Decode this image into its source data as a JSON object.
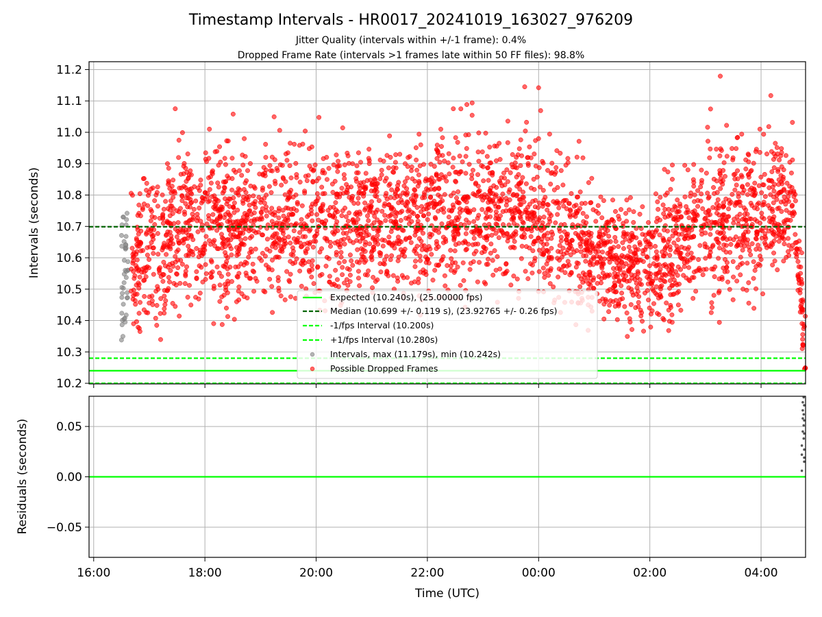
{
  "chart_data": [
    {
      "type": "scatter",
      "title": "Timestamp Intervals - HR0017_20241019_163027_976209",
      "subtitle": [
        "Jitter Quality (intervals within +/-1 frame): 0.4%",
        "Dropped Frame Rate (intervals >1 frames late within 50 FF files): 98.8%"
      ],
      "ylabel": "Intervals (seconds)",
      "xlim": [
        "15:55",
        "04:48"
      ],
      "ylim": [
        10.198,
        11.225
      ],
      "yticks": [
        "10.2",
        "10.3",
        "10.4",
        "10.5",
        "10.6",
        "10.7",
        "10.8",
        "10.9",
        "11.0",
        "11.1",
        "11.2"
      ],
      "grid": true,
      "legend": "lower center",
      "colors": {
        "expected": "#00ff00",
        "median": "#006400",
        "fps_bounds": "#00ff00",
        "intervals": "#808080",
        "dropped": "#ff0000"
      },
      "reference_lines": {
        "expected": 10.24,
        "median": 10.699,
        "minus_fps": 10.2,
        "plus_fps": 10.28
      },
      "legend_entries": [
        "Expected (10.240s), (25.00000 fps)",
        "Median (10.699 +/- 0.119 s), (23.92765 +/- 0.26 fps)",
        "-1/fps Interval (10.200s)",
        "+1/fps Interval (10.280s)",
        "Intervals, max (11.179s), min (10.242s)",
        "Possible Dropped Frames"
      ],
      "series": [
        {
          "name": "Intervals, max (11.179s), min (10.242s)",
          "points": [
            {
              "x": "16:30",
              "y": 10.338
            },
            {
              "x": "16:31",
              "y": 10.401
            },
            {
              "x": "16:32",
              "y": 10.452
            },
            {
              "x": "16:32",
              "y": 10.503
            },
            {
              "x": "16:33",
              "y": 10.548
            },
            {
              "x": "16:33",
              "y": 10.592
            },
            {
              "x": "16:34",
              "y": 10.631
            },
            {
              "x": "16:35",
              "y": 10.705
            },
            {
              "x": "16:36",
              "y": 10.742
            },
            {
              "x": "16:36",
              "y": 10.472
            },
            {
              "x": "16:37",
              "y": 10.56
            }
          ]
        },
        {
          "name": "Possible Dropped Frames",
          "segments": [
            {
              "x0": "16:40",
              "x1": "17:30",
              "y0": 10.56,
              "y1": 10.7,
              "spread": 0.12
            },
            {
              "x0": "17:30",
              "x1": "21:00",
              "y0": 10.7,
              "y1": 10.72,
              "spread": 0.12
            },
            {
              "x0": "21:00",
              "x1": "23:30",
              "y0": 10.72,
              "y1": 10.76,
              "spread": 0.12
            },
            {
              "x0": "23:30",
              "x1": "01:00",
              "y0": 10.76,
              "y1": 10.62,
              "spread": 0.12
            },
            {
              "x0": "01:00",
              "x1": "02:00",
              "y0": 10.62,
              "y1": 10.57,
              "spread": 0.09
            },
            {
              "x0": "02:00",
              "x1": "03:00",
              "y0": 10.57,
              "y1": 10.72,
              "spread": 0.11
            },
            {
              "x0": "03:00",
              "x1": "04:35",
              "y0": 10.72,
              "y1": 10.76,
              "spread": 0.12
            },
            {
              "x0": "04:35",
              "x1": "04:48",
              "y0": 10.76,
              "y1": 10.3,
              "spread": 0.06
            }
          ],
          "outliers": [
            {
              "x": "00:00",
              "y": 11.142
            },
            {
              "x": "03:16",
              "y": 11.179
            },
            {
              "x": "23:45",
              "y": 11.145
            },
            {
              "x": "17:28",
              "y": 11.075
            },
            {
              "x": "22:28",
              "y": 11.075
            }
          ]
        }
      ]
    },
    {
      "type": "scatter",
      "ylabel": "Residuals (seconds)",
      "xlabel": "Time (UTC)",
      "xlim": [
        "15:55",
        "04:48"
      ],
      "xticks": [
        "16:00",
        "18:00",
        "20:00",
        "22:00",
        "00:00",
        "02:00",
        "04:00"
      ],
      "ylim": [
        -0.08,
        0.08
      ],
      "yticks": [
        "0.05",
        "0.00",
        "−0.05"
      ],
      "grid": true,
      "zero_line": 0.0,
      "series": [
        {
          "name": "Residuals",
          "points": [
            {
              "x": "04:44",
              "y": 0.006
            },
            {
              "x": "04:44",
              "y": 0.022
            },
            {
              "x": "04:44",
              "y": 0.031
            },
            {
              "x": "04:45",
              "y": 0.045
            },
            {
              "x": "04:45",
              "y": 0.058
            },
            {
              "x": "04:45",
              "y": 0.066
            },
            {
              "x": "04:45",
              "y": 0.074
            },
            {
              "x": "04:46",
              "y": 0.079
            },
            {
              "x": "04:46",
              "y": 0.062
            },
            {
              "x": "04:46",
              "y": 0.051
            },
            {
              "x": "04:46",
              "y": 0.038
            },
            {
              "x": "04:47",
              "y": 0.027
            },
            {
              "x": "04:47",
              "y": 0.015
            },
            {
              "x": "04:47",
              "y": 0.071
            },
            {
              "x": "04:47",
              "y": 0.056
            },
            {
              "x": "04:48",
              "y": 0.043
            },
            {
              "x": "04:48",
              "y": 0.019
            }
          ]
        }
      ]
    }
  ]
}
